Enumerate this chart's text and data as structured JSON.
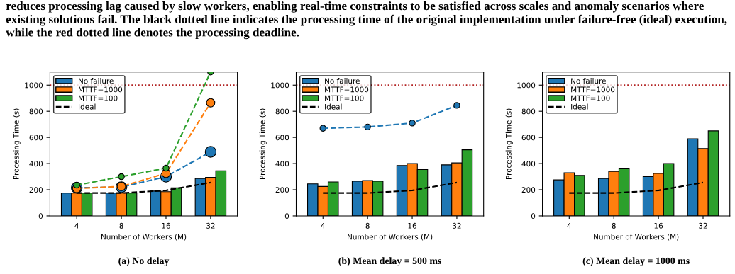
{
  "chart_data": [
    {
      "type": "bar",
      "title": null,
      "annotations": [
        "reduces processing lag caused by slow workers, enabling real-time constraints to be satisfied across scales and anomaly scenarios where existing solutions fail. The black dotted line indicates the processing time of the original implementation under failure-free (ideal) execution, while the red dotted line denotes the processing deadline.",
        "(a) No delay"
      ],
      "xlabel": "Number of Workers (M)",
      "ylabel": "Processing Time (s)",
      "categories": [
        "4",
        "8",
        "16",
        "32"
      ],
      "ylim": [
        0,
        1100
      ],
      "yticks": [
        0,
        200,
        400,
        600,
        800,
        1000
      ],
      "legend": "top left",
      "grid": false,
      "series": [
        {
          "name": "No failure",
          "color": "#1f77b4",
          "values": [
            175,
            175,
            190,
            285
          ]
        },
        {
          "name": "MTTF=1000",
          "color": "#ff7f0e",
          "values": [
            175,
            175,
            185,
            295
          ]
        },
        {
          "name": "MTTF=100",
          "color": "#2ca02c",
          "values": [
            175,
            175,
            215,
            345
          ]
        },
        {
          "name": "Ideal",
          "type": "line",
          "color": "#000000",
          "line_style": "dashed",
          "marker": "none",
          "values": [
            175,
            175,
            195,
            255
          ]
        },
        {
          "type": "line",
          "color": "#1f77b4",
          "line_style": "dashed",
          "marker": "circle",
          "values": [
            215,
            220,
            300,
            490
          ]
        },
        {
          "type": "line",
          "color": "#ff7f0e",
          "line_style": "dashed",
          "marker": "circle",
          "values": [
            210,
            225,
            325,
            865
          ]
        },
        {
          "type": "line",
          "color": "#2ca02c",
          "line_style": "dashed",
          "marker": "circle",
          "values": [
            235,
            300,
            365,
            1100
          ]
        }
      ],
      "ref_lines": [
        {
          "axis": "y",
          "value": 1000,
          "color": "#b22222",
          "line_style": "dotted"
        }
      ]
    },
    {
      "type": "bar",
      "annotations": [
        "(b) Mean delay = 500 ms"
      ],
      "xlabel": "Number of Workers (M)",
      "ylabel": "Processing Time (s)",
      "categories": [
        "4",
        "8",
        "16",
        "32"
      ],
      "ylim": [
        0,
        1100
      ],
      "yticks": [
        0,
        200,
        400,
        600,
        800,
        1000
      ],
      "legend": "top left",
      "grid": false,
      "series": [
        {
          "name": "No failure",
          "color": "#1f77b4",
          "values": [
            245,
            265,
            385,
            390
          ]
        },
        {
          "name": "MTTF=1000",
          "color": "#ff7f0e",
          "values": [
            225,
            270,
            400,
            405
          ]
        },
        {
          "name": "MTTF=100",
          "color": "#2ca02c",
          "values": [
            260,
            265,
            355,
            505
          ]
        },
        {
          "name": "Ideal",
          "type": "line",
          "color": "#000000",
          "line_style": "dashed",
          "marker": "none",
          "values": [
            175,
            175,
            195,
            255
          ]
        },
        {
          "type": "line",
          "color": "#1f77b4",
          "line_style": "dashed",
          "marker": "circle",
          "values": [
            670,
            680,
            710,
            845
          ]
        }
      ],
      "ref_lines": [
        {
          "axis": "y",
          "value": 1000,
          "color": "#b22222",
          "line_style": "dotted"
        }
      ]
    },
    {
      "type": "bar",
      "annotations": [
        "(c) Mean delay = 1000 ms"
      ],
      "xlabel": "Number of Workers (M)",
      "ylabel": "Processing Time (s)",
      "categories": [
        "4",
        "8",
        "16",
        "32"
      ],
      "ylim": [
        0,
        1100
      ],
      "yticks": [
        0,
        200,
        400,
        600,
        800,
        1000
      ],
      "legend": "top left",
      "grid": false,
      "series": [
        {
          "name": "No failure",
          "color": "#1f77b4",
          "values": [
            275,
            285,
            300,
            590
          ]
        },
        {
          "name": "MTTF=1000",
          "color": "#ff7f0e",
          "values": [
            330,
            340,
            325,
            515
          ]
        },
        {
          "name": "MTTF=100",
          "color": "#2ca02c",
          "values": [
            310,
            365,
            400,
            650
          ]
        },
        {
          "name": "Ideal",
          "type": "line",
          "color": "#000000",
          "line_style": "dashed",
          "marker": "none",
          "values": [
            175,
            175,
            195,
            255
          ]
        }
      ],
      "ref_lines": [
        {
          "axis": "y",
          "value": 1000,
          "color": "#b22222",
          "line_style": "dotted"
        }
      ]
    }
  ]
}
